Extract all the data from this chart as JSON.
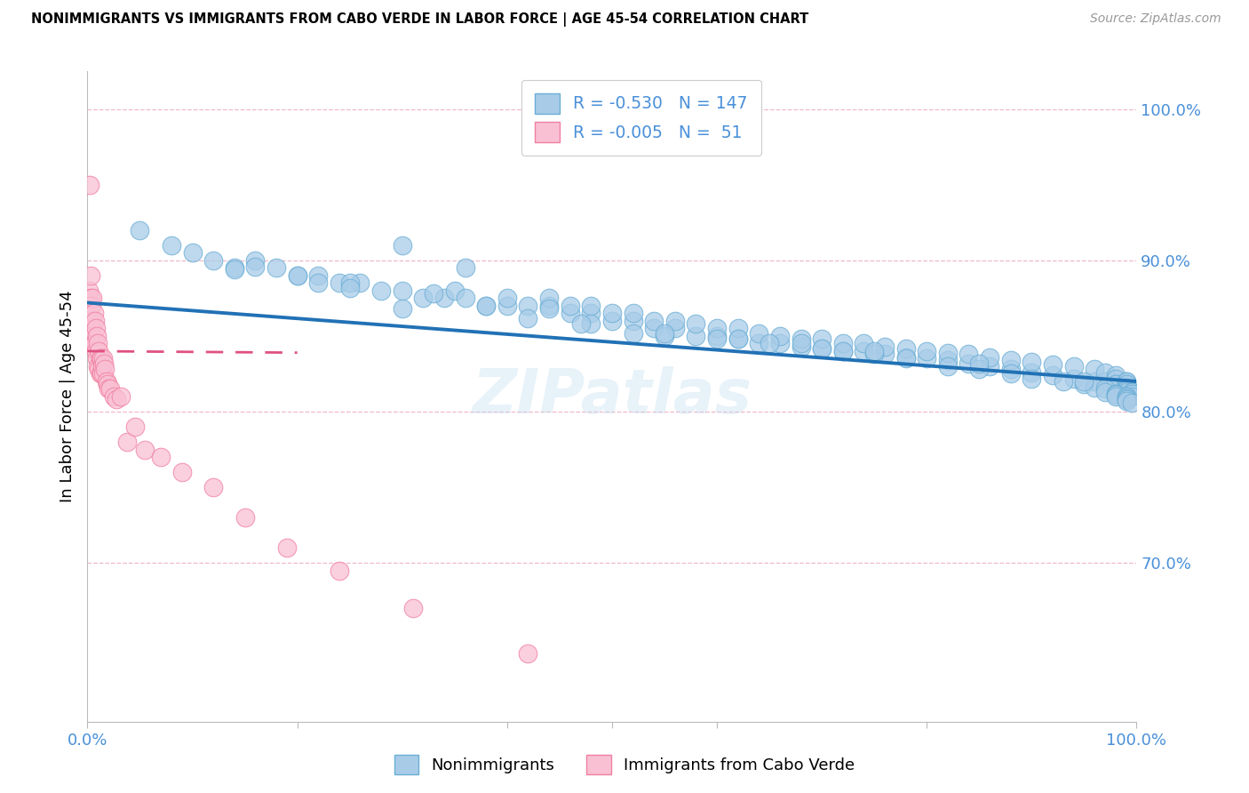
{
  "title": "NONIMMIGRANTS VS IMMIGRANTS FROM CABO VERDE IN LABOR FORCE | AGE 45-54 CORRELATION CHART",
  "source": "Source: ZipAtlas.com",
  "ylabel": "In Labor Force | Age 45-54",
  "xlim": [
    0.0,
    1.0
  ],
  "ylim": [
    0.595,
    1.025
  ],
  "yticks": [
    0.7,
    0.8,
    0.9,
    1.0
  ],
  "ytick_labels": [
    "70.0%",
    "80.0%",
    "90.0%",
    "100.0%"
  ],
  "blue_color": "#a8cce8",
  "blue_edge_color": "#6aaed6",
  "blue_line_color": "#2171b5",
  "pink_color": "#f9c0d4",
  "pink_edge_color": "#f080a0",
  "pink_line_color": "#e05080",
  "text_color": "#4a90d9",
  "grid_color": "#f0b8c8",
  "watermark": "ZIPatlas",
  "legend_blue_r": "-0.530",
  "legend_blue_n": "147",
  "legend_pink_r": "-0.005",
  "legend_pink_n": " 51",
  "blue_trendline_x": [
    0.0,
    1.0
  ],
  "blue_trendline_y": [
    0.872,
    0.82
  ],
  "pink_trendline_x": [
    0.0,
    0.2
  ],
  "pink_trendline_y": [
    0.84,
    0.839
  ],
  "blue_scatter_x": [
    0.05,
    0.08,
    0.1,
    0.12,
    0.14,
    0.16,
    0.18,
    0.2,
    0.22,
    0.24,
    0.26,
    0.28,
    0.3,
    0.3,
    0.32,
    0.34,
    0.35,
    0.36,
    0.36,
    0.38,
    0.4,
    0.4,
    0.42,
    0.44,
    0.44,
    0.46,
    0.46,
    0.48,
    0.48,
    0.5,
    0.5,
    0.52,
    0.52,
    0.54,
    0.54,
    0.56,
    0.56,
    0.58,
    0.58,
    0.6,
    0.6,
    0.62,
    0.62,
    0.64,
    0.64,
    0.66,
    0.66,
    0.68,
    0.68,
    0.7,
    0.7,
    0.72,
    0.72,
    0.74,
    0.74,
    0.76,
    0.76,
    0.78,
    0.78,
    0.8,
    0.8,
    0.82,
    0.82,
    0.84,
    0.84,
    0.86,
    0.86,
    0.88,
    0.88,
    0.9,
    0.9,
    0.92,
    0.92,
    0.94,
    0.94,
    0.96,
    0.96,
    0.97,
    0.97,
    0.98,
    0.98,
    0.98,
    0.98,
    0.98,
    0.99,
    0.99,
    0.99,
    0.99,
    0.99,
    0.99,
    0.99,
    0.99,
    0.99,
    0.99,
    0.995,
    0.995,
    0.995,
    0.995,
    0.995,
    0.995,
    0.995,
    0.3,
    0.42,
    0.33,
    0.38,
    0.25,
    0.55,
    0.48,
    0.52,
    0.44,
    0.6,
    0.65,
    0.7,
    0.72,
    0.75,
    0.78,
    0.82,
    0.85,
    0.88,
    0.9,
    0.93,
    0.95,
    0.96,
    0.97,
    0.97,
    0.98,
    0.98,
    0.98,
    0.98,
    0.99,
    0.99,
    0.99,
    0.99,
    0.99,
    0.995,
    0.95,
    0.85,
    0.75,
    0.68,
    0.62,
    0.55,
    0.47,
    0.14,
    0.16,
    0.2,
    0.22,
    0.25
  ],
  "blue_scatter_y": [
    0.92,
    0.91,
    0.905,
    0.9,
    0.895,
    0.9,
    0.895,
    0.89,
    0.89,
    0.885,
    0.885,
    0.88,
    0.88,
    0.91,
    0.875,
    0.875,
    0.88,
    0.875,
    0.895,
    0.87,
    0.87,
    0.875,
    0.87,
    0.87,
    0.875,
    0.865,
    0.87,
    0.865,
    0.87,
    0.86,
    0.865,
    0.86,
    0.865,
    0.855,
    0.86,
    0.855,
    0.86,
    0.85,
    0.858,
    0.85,
    0.855,
    0.848,
    0.855,
    0.845,
    0.852,
    0.845,
    0.85,
    0.843,
    0.848,
    0.842,
    0.848,
    0.84,
    0.845,
    0.84,
    0.845,
    0.838,
    0.843,
    0.836,
    0.842,
    0.835,
    0.84,
    0.834,
    0.839,
    0.832,
    0.838,
    0.83,
    0.836,
    0.828,
    0.834,
    0.826,
    0.833,
    0.824,
    0.831,
    0.822,
    0.83,
    0.82,
    0.828,
    0.82,
    0.826,
    0.818,
    0.824,
    0.818,
    0.822,
    0.818,
    0.82,
    0.816,
    0.82,
    0.815,
    0.818,
    0.815,
    0.816,
    0.815,
    0.814,
    0.813,
    0.812,
    0.813,
    0.812,
    0.811,
    0.813,
    0.812,
    0.81,
    0.868,
    0.862,
    0.878,
    0.87,
    0.885,
    0.85,
    0.858,
    0.852,
    0.868,
    0.848,
    0.845,
    0.842,
    0.84,
    0.838,
    0.835,
    0.83,
    0.828,
    0.825,
    0.822,
    0.82,
    0.818,
    0.816,
    0.815,
    0.813,
    0.812,
    0.812,
    0.811,
    0.81,
    0.81,
    0.81,
    0.809,
    0.808,
    0.807,
    0.806,
    0.82,
    0.832,
    0.84,
    0.845,
    0.848,
    0.852,
    0.858,
    0.894,
    0.896,
    0.89,
    0.885,
    0.882
  ],
  "pink_scatter_x": [
    0.001,
    0.001,
    0.002,
    0.002,
    0.003,
    0.003,
    0.003,
    0.004,
    0.004,
    0.005,
    0.005,
    0.005,
    0.006,
    0.006,
    0.007,
    0.007,
    0.008,
    0.008,
    0.009,
    0.009,
    0.01,
    0.01,
    0.011,
    0.011,
    0.012,
    0.012,
    0.013,
    0.013,
    0.014,
    0.015,
    0.015,
    0.016,
    0.017,
    0.018,
    0.019,
    0.02,
    0.022,
    0.025,
    0.028,
    0.032,
    0.038,
    0.045,
    0.055,
    0.07,
    0.09,
    0.12,
    0.15,
    0.19,
    0.24,
    0.31,
    0.42
  ],
  "pink_scatter_y": [
    0.88,
    0.86,
    0.95,
    0.87,
    0.89,
    0.875,
    0.86,
    0.87,
    0.855,
    0.875,
    0.86,
    0.85,
    0.865,
    0.845,
    0.86,
    0.845,
    0.855,
    0.84,
    0.85,
    0.835,
    0.845,
    0.83,
    0.84,
    0.828,
    0.835,
    0.825,
    0.835,
    0.825,
    0.83,
    0.835,
    0.825,
    0.832,
    0.828,
    0.82,
    0.818,
    0.815,
    0.815,
    0.81,
    0.808,
    0.81,
    0.78,
    0.79,
    0.775,
    0.77,
    0.76,
    0.75,
    0.73,
    0.71,
    0.695,
    0.67,
    0.64
  ],
  "figsize": [
    14.06,
    8.92
  ],
  "dpi": 100
}
